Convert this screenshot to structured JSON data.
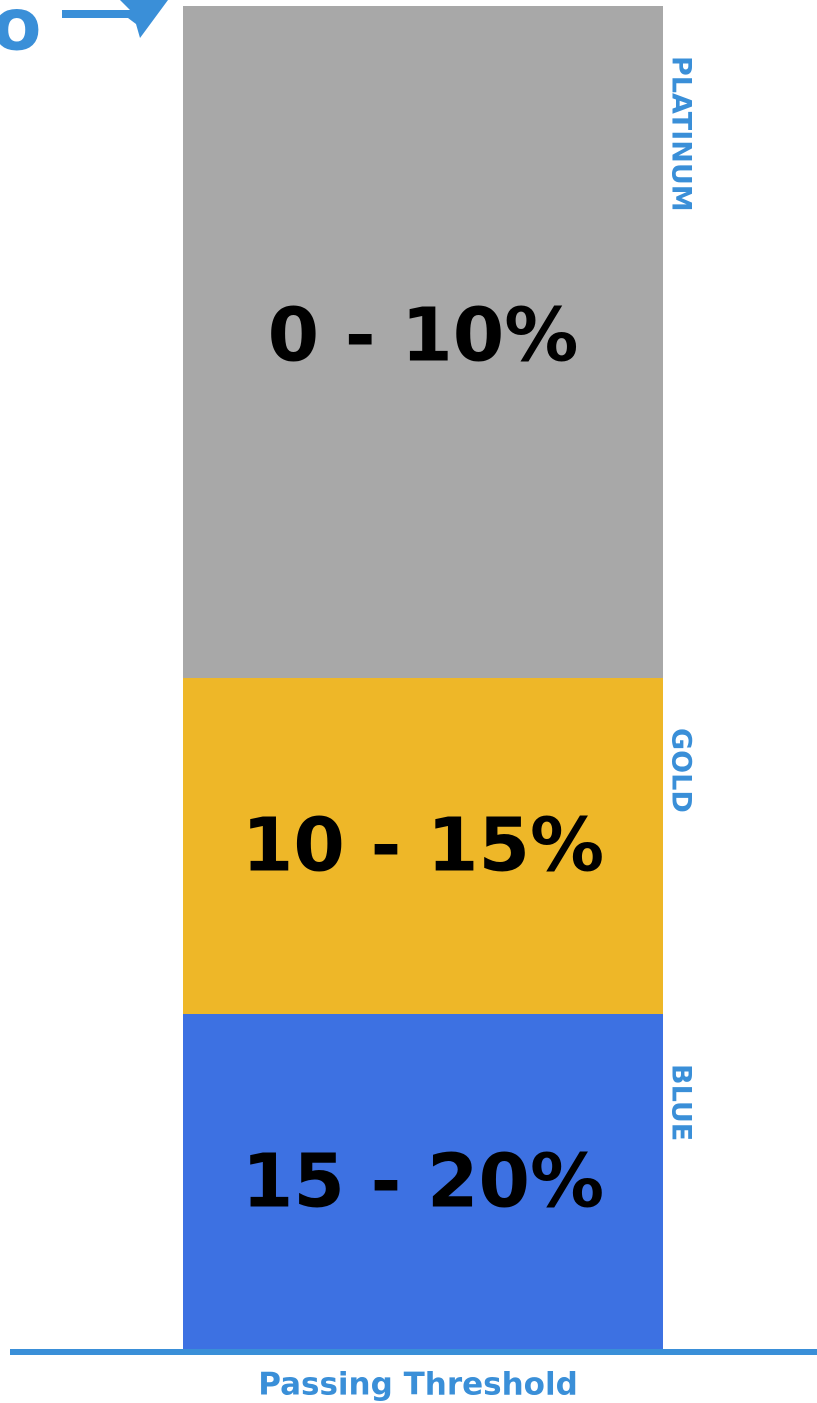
{
  "header": {
    "cut_text": "o"
  },
  "tiers": [
    {
      "name": "PLATINUM",
      "range": "0 - 10%",
      "color": "#a8a8a8"
    },
    {
      "name": "GOLD",
      "range": "10 - 15%",
      "color": "#eeb728"
    },
    {
      "name": "BLUE",
      "range": "15 - 20%",
      "color": "#3d71e2"
    }
  ],
  "footer": {
    "label": "Passing Threshold"
  }
}
